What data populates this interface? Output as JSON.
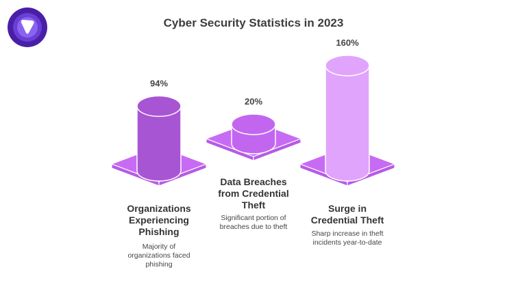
{
  "title": "Cyber Security Statistics in 2023",
  "logo": {
    "icon": "brand-logo-icon"
  },
  "colors": {
    "base": "#c76bf4",
    "base_side": "#b65be6",
    "bar1": "#a855d3",
    "bar2": "#c266f0",
    "bar3": "#e1a4fc"
  },
  "chart_data": {
    "type": "bar",
    "title": "Cyber Security Statistics in 2023",
    "categories": [
      "Organizations Experiencing Phishing",
      "Data Breaches from Credential Theft",
      "Surge in Credential Theft"
    ],
    "values": [
      94,
      20,
      160
    ],
    "unit": "%",
    "value_labels": [
      "94%",
      "20%",
      "160%"
    ],
    "descriptions": [
      "Majority of organizations faced phishing",
      "Significant portion of breaches due to theft",
      "Sharp increase in theft incidents year-to-date"
    ]
  },
  "items": [
    {
      "title_lines": [
        "Organizations",
        "Experiencing",
        "Phishing"
      ],
      "desc_lines": [
        "Majority of",
        "organizations faced",
        "phishing"
      ]
    },
    {
      "title_lines": [
        "Data Breaches",
        "from Credential",
        "Theft"
      ],
      "desc_lines": [
        "Significant portion of",
        "breaches due to theft"
      ]
    },
    {
      "title_lines": [
        "Surge in",
        "Credential Theft"
      ],
      "desc_lines": [
        "Sharp increase in theft",
        "incidents year-to-date"
      ]
    }
  ]
}
